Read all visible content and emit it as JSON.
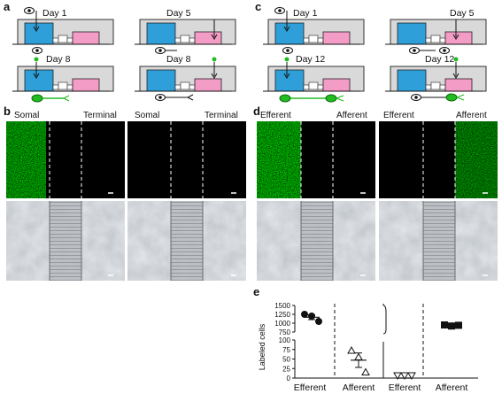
{
  "panels": {
    "a": {
      "letter": "a",
      "days": [
        "Day 1",
        "Day 5",
        "Day 8",
        "Day 8"
      ]
    },
    "b": {
      "letter": "b",
      "labels": [
        "Somal",
        "Terminal",
        "Somal",
        "Terminal"
      ]
    },
    "c": {
      "letter": "c",
      "days": [
        "Day 1",
        "Day 5",
        "Day 12",
        "Day 12"
      ]
    },
    "d": {
      "letter": "d",
      "labels": [
        "Efferent",
        "Afferent",
        "Efferent",
        "Afferent"
      ]
    },
    "e": {
      "letter": "e"
    }
  },
  "colors": {
    "soma_compartment": "#2e9fd8",
    "terminal_compartment": "#f29cc6",
    "chamber_bg": "#d9d9d9",
    "fluorescence": "#2dbb2d",
    "neuron_green": "#22bb22",
    "brightfield": "#a8aeb4"
  },
  "chart_data": {
    "type": "scatter",
    "ylabel": "Labeled cells",
    "y_axis": {
      "broken": true,
      "lower_range": [
        0,
        100
      ],
      "lower_ticks": [
        "0",
        "25",
        "50",
        "75",
        "100"
      ],
      "upper_range": [
        750,
        1500
      ],
      "upper_ticks": [
        "750",
        "1000",
        "1250",
        "1500"
      ]
    },
    "x_labels": [
      "Efferent",
      "Afferent",
      "Efferent",
      "Afferent"
    ],
    "groups": [
      {
        "label": "Efferent",
        "marker": "circle",
        "filled": true,
        "values": [
          1250,
          1200,
          1050
        ],
        "mean": 1167
      },
      {
        "label": "Afferent",
        "marker": "triangle-up",
        "filled": false,
        "values": [
          72,
          55,
          15
        ],
        "mean": 47
      },
      {
        "label": "Efferent",
        "marker": "triangle-down",
        "filled": false,
        "values": [
          0,
          0,
          0
        ],
        "mean": 0
      },
      {
        "label": "Afferent",
        "marker": "square",
        "filled": true,
        "values": [
          950,
          920,
          940
        ],
        "mean": 937
      }
    ]
  }
}
